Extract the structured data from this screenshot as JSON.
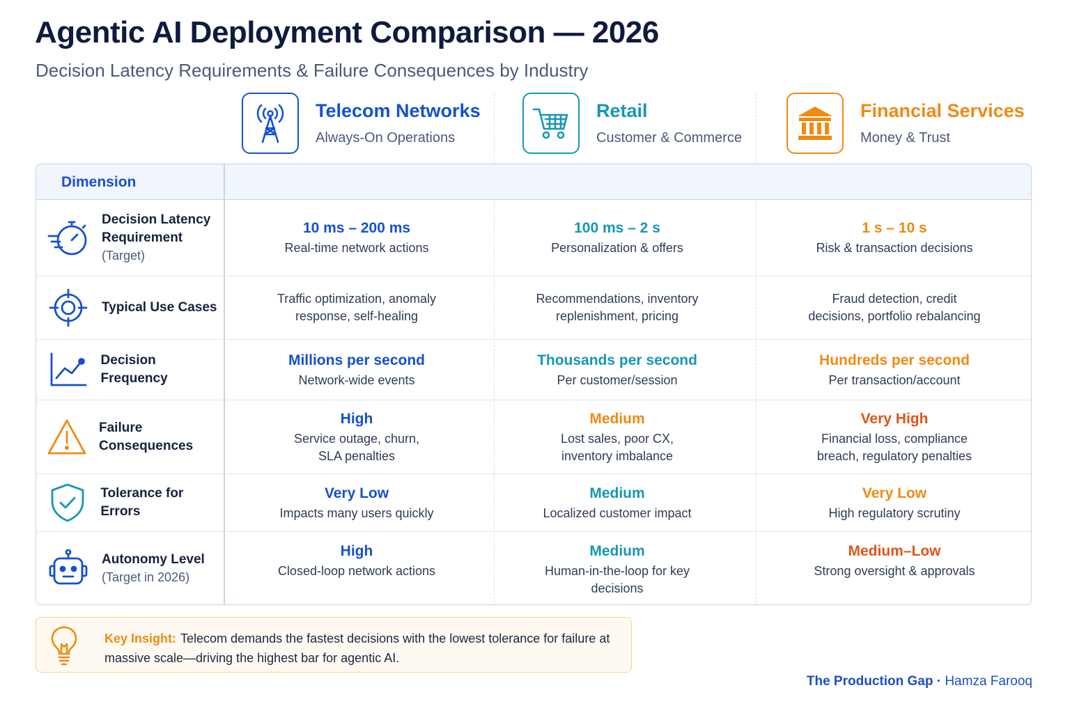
{
  "title": "Agentic AI Deployment Comparison — 2026",
  "subtitle": "Decision Latency Requirements & Failure Consequences by Industry",
  "colors": {
    "telecom": "#1650d0",
    "retail": "#1697b5",
    "financial": "#f08a12",
    "very_high": "#e0541a"
  },
  "columns": [
    {
      "name": "Telecom Networks",
      "sub": "Always-On Operations",
      "icon": "cell-tower-icon"
    },
    {
      "name": "Retail",
      "sub": "Customer & Commerce",
      "icon": "shopping-cart-icon"
    },
    {
      "name": "Financial Services",
      "sub": "Money & Trust",
      "icon": "bank-icon"
    }
  ],
  "table": {
    "header": "Dimension",
    "rows": [
      {
        "icon": "stopwatch-icon",
        "label": "Decision Latency Requirement",
        "sub": "(Target)",
        "cells": [
          {
            "value": "10 ms – 200 ms",
            "desc": "Real-time network actions"
          },
          {
            "value": "100 ms – 2 s",
            "desc": "Personalization & offers"
          },
          {
            "value": "1 s – 10 s",
            "desc": "Risk & transaction decisions"
          }
        ]
      },
      {
        "icon": "target-icon",
        "label": "Typical Use Cases",
        "cells": [
          {
            "line1": "Traffic optimization, anomaly",
            "line2": "response, self-healing"
          },
          {
            "line1": "Recommendations, inventory",
            "line2": "replenishment, pricing"
          },
          {
            "line1": "Fraud detection, credit",
            "line2": "decisions, portfolio rebalancing"
          }
        ]
      },
      {
        "icon": "line-chart-icon",
        "label": "Decision Frequency",
        "cells": [
          {
            "value": "Millions per second",
            "desc": "Network-wide events"
          },
          {
            "value": "Thousands per second",
            "desc": "Per customer/session"
          },
          {
            "value": "Hundreds per second",
            "desc": "Per transaction/account"
          }
        ]
      },
      {
        "icon": "warning-icon",
        "label": "Failure Consequences",
        "cells": [
          {
            "value": "High",
            "line1": "Service outage, churn,",
            "line2": "SLA penalties"
          },
          {
            "value": "Medium",
            "line1": "Lost sales, poor CX,",
            "line2": "inventory imbalance"
          },
          {
            "value": "Very High",
            "line1": "Financial loss, compliance",
            "line2": "breach, regulatory penalties"
          }
        ]
      },
      {
        "icon": "shield-check-icon",
        "label": "Tolerance for Errors",
        "cells": [
          {
            "value": "Very Low",
            "desc": "Impacts many users quickly"
          },
          {
            "value": "Medium",
            "desc": "Localized customer impact"
          },
          {
            "value": "Very Low",
            "desc": "High regulatory scrutiny"
          }
        ]
      },
      {
        "icon": "robot-icon",
        "label": "Autonomy Level",
        "sub": "(Target in 2026)",
        "cells": [
          {
            "value": "High",
            "line1": "Closed-loop network actions"
          },
          {
            "value": "Medium",
            "line1": "Human-in-the-loop for key",
            "line2": "decisions"
          },
          {
            "value": "Medium–Low",
            "line1": "Strong oversight & approvals"
          }
        ]
      }
    ]
  },
  "insight": {
    "icon": "lightbulb-icon",
    "key": "Key Insight:",
    "text": "Telecom demands the fastest decisions with the lowest tolerance for failure at massive scale—driving the highest bar for agentic AI."
  },
  "footer": {
    "brand": "The Production Gap",
    "separator": "·",
    "author": "Hamza Farooq"
  }
}
